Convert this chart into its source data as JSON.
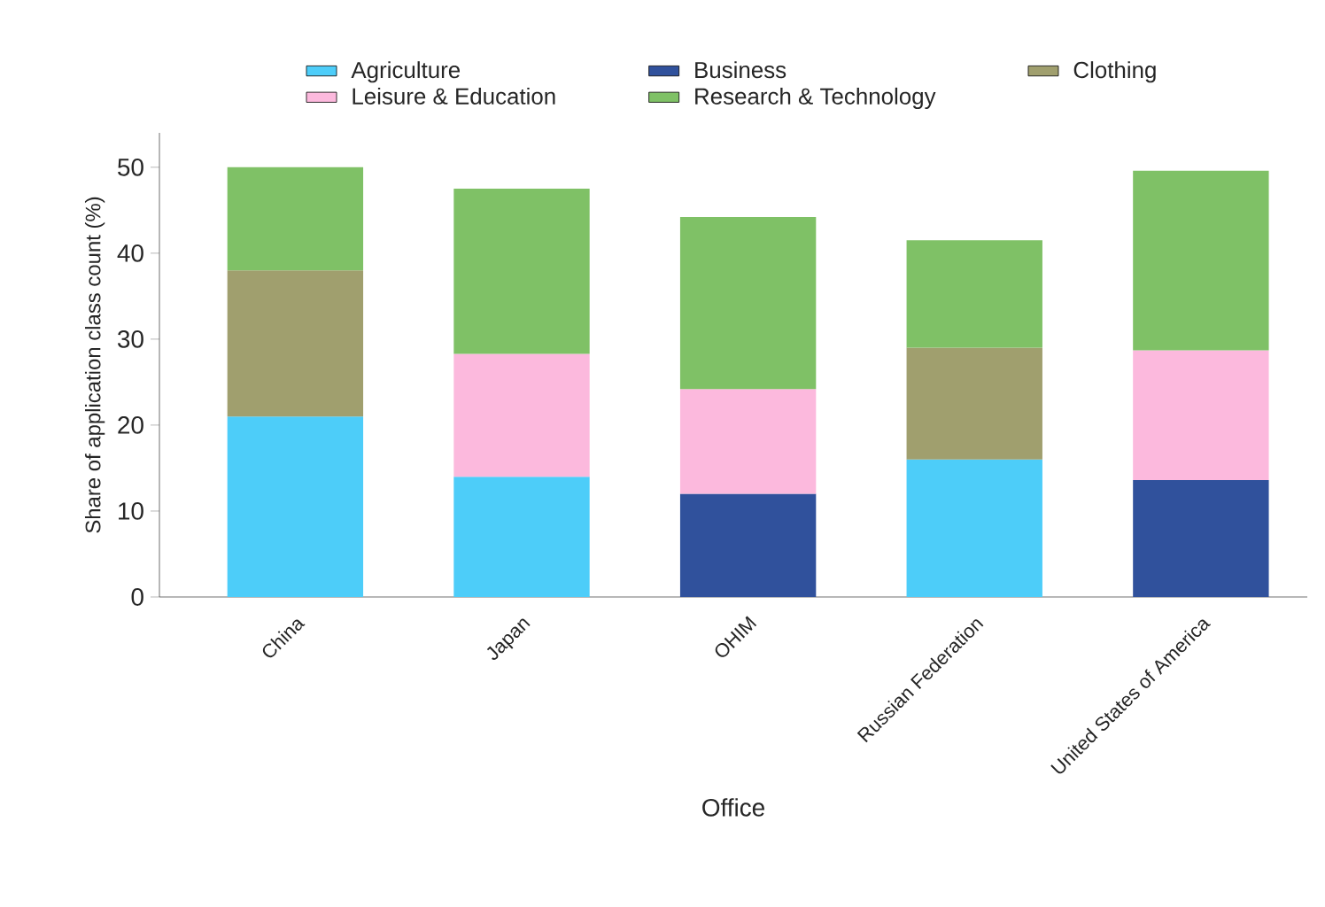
{
  "chart_data": {
    "type": "bar",
    "stacked": true,
    "xlabel": "Office",
    "ylabel": "Share of application class count (%)",
    "categories": [
      "China",
      "Japan",
      "OHIM",
      "Russian Federation",
      "United States of America"
    ],
    "series": [
      {
        "name": "Agriculture",
        "color": "#4dcdf9",
        "values": [
          21,
          14,
          null,
          16,
          null
        ]
      },
      {
        "name": "Business",
        "color": "#30519c",
        "values": [
          null,
          null,
          12,
          null,
          13.6
        ]
      },
      {
        "name": "Clothing",
        "color": "#a09f6e",
        "values": [
          17,
          null,
          null,
          13,
          null
        ]
      },
      {
        "name": "Leisure & Education",
        "color": "#fcb9dd",
        "values": [
          null,
          14.3,
          12.2,
          null,
          15.1
        ]
      },
      {
        "name": "Research & Technology",
        "color": "#7fc166",
        "values": [
          12,
          19.2,
          20,
          12.5,
          20.9
        ]
      }
    ],
    "ylim": [
      0,
      54
    ],
    "yticks": [
      0,
      10,
      20,
      30,
      40,
      50
    ],
    "legend": "top",
    "grid": false
  }
}
